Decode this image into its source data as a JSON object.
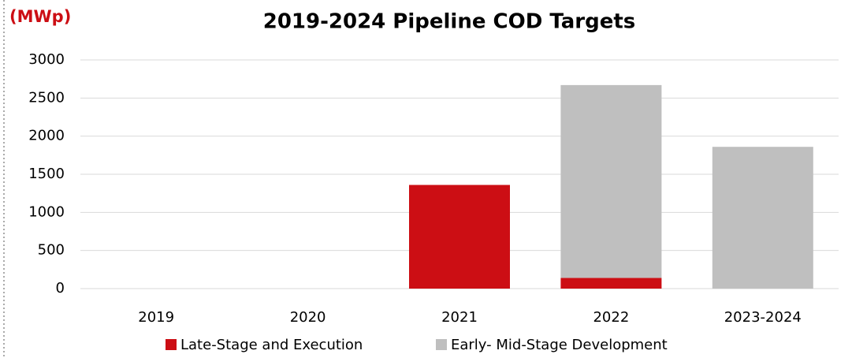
{
  "chart_data": {
    "type": "stacked_bar",
    "title": "2019-2024 Pipeline COD Targets",
    "unit_label": "(MWp)",
    "categories": [
      "2019",
      "2020",
      "2021",
      "2022",
      "2023-2024"
    ],
    "series": [
      {
        "name": "Late-Stage and Execution",
        "color": "#cc0e14",
        "values": [
          0,
          0,
          1360,
          140,
          0
        ]
      },
      {
        "name": "Early- Mid-Stage Development",
        "color": "#bfbfbf",
        "values": [
          0,
          0,
          0,
          2530,
          1860
        ]
      }
    ],
    "ylim": [
      0,
      3000
    ],
    "yticks": [
      0,
      500,
      1000,
      1500,
      2000,
      2500,
      3000
    ],
    "grid": true
  }
}
